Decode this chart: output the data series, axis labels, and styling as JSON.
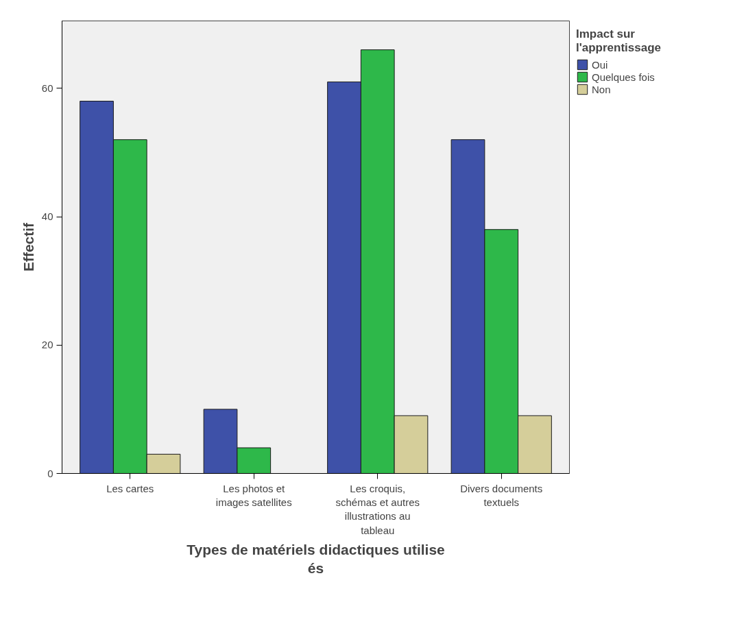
{
  "chart_data": {
    "type": "bar",
    "xlabel": "Types de matériels didactiques utilise\nés",
    "ylabel": "Effectif",
    "legend_title": "Impact sur\nl'apprentissage",
    "legend": "top right",
    "categories": [
      "Les cartes",
      "Les photos et\nimages satellites",
      "Les croquis,\nschémas et autres\nillustrations au\ntableau",
      "Divers documents\ntextuels"
    ],
    "series": [
      {
        "name": "Oui",
        "color": "#3e51a8",
        "values": [
          58,
          10,
          61,
          52
        ]
      },
      {
        "name": "Quelques fois",
        "color": "#2eb84a",
        "values": [
          52,
          4,
          66,
          38
        ]
      },
      {
        "name": "Non",
        "color": "#d5ce9a",
        "values": [
          3,
          0,
          9,
          9
        ]
      }
    ],
    "ylim": [
      0,
      70.5
    ],
    "yticks": [
      0,
      20,
      40,
      60
    ],
    "grid": false
  }
}
